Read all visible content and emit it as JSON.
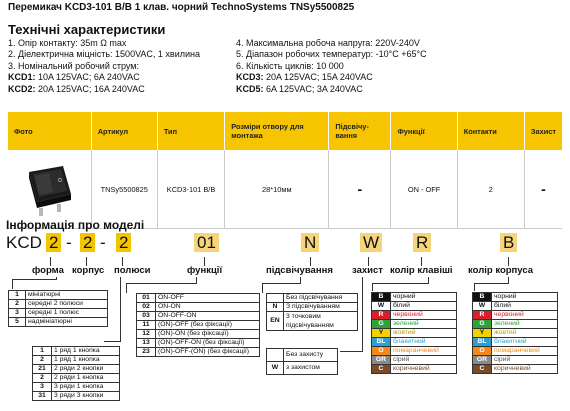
{
  "title": "Перемикач KCD3-101 B/B 1 клав. чорний TechnoSystems TNSy5500825",
  "specs_heading": "Технічні характеристики",
  "specs_left": [
    "1. Опір контакту: 35m Ω  max",
    "2. Діелектрична міцність:  1500VAC, 1 хвилина",
    "3. Номінальний робочий струм:"
  ],
  "specs_left_rows": [
    {
      "k": "KCD1:",
      "v": " 10A 125VAC; 6A 240VAC"
    },
    {
      "k": "KCD2:",
      "v": " 20A 125VAC; 16A 240VAC"
    }
  ],
  "specs_right": [
    "4. Максимальна робоча напруга: 220V-240V",
    "5. Діапазон робочих температур: -10°C +65°C",
    "6. Кількість циклів: 10 000"
  ],
  "specs_right_rows": [
    {
      "k": "KCD3:",
      "v": " 20A 125VAC; 15A 240VAC"
    },
    {
      "k": "KCD5:",
      "v": " 6A 125VAC; 3A 240VAC"
    }
  ],
  "table": {
    "headers": [
      "Фото",
      "Артикул",
      "Тип",
      "Розміри отвору для монтажа",
      "Підсвічу-вання",
      "Функції",
      "Контакти",
      "Захист"
    ],
    "row": [
      "",
      "TNSy5500825",
      "KCD3-101 B/B",
      "28*10мм",
      "-",
      "ON - OFF",
      "2",
      "-"
    ]
  },
  "model_heading": "Інформація про моделі",
  "code": {
    "prefix": "KCD",
    "p1": "2",
    "sep": "-",
    "p2": "2",
    "p3": "2",
    "p4": "01",
    "p5": "N",
    "p6": "W",
    "p7": "R",
    "p8": "B"
  },
  "labels": {
    "forma": "форма",
    "korpus": "корпус",
    "polyusy": "полюси",
    "funktsii": "функції",
    "pidsv": "підсвічування",
    "zakhyst": "захист",
    "kolir_kl": "колір клавіші",
    "kolir_korp": "колір корпуса"
  },
  "forma_rows": [
    {
      "k": "1",
      "v": "мініатюрні"
    },
    {
      "k": "2",
      "v": "середні 2 полюси"
    },
    {
      "k": "3",
      "v": "середні 1 полюс"
    },
    {
      "k": "5",
      "v": "надмініатюрні"
    }
  ],
  "poles_rows": [
    {
      "k": "1",
      "v": "1 ряд 1 кнопка"
    },
    {
      "k": "2",
      "v": "1 ряд 1 кнопка"
    },
    {
      "k": "21",
      "v": "2 ряди 2 кнопки"
    },
    {
      "k": "2",
      "v": "2 ряди 1 кнопка"
    },
    {
      "k": "3",
      "v": "3 ряди 1 кнопка"
    },
    {
      "k": "31",
      "v": "3 ряди 3 кнопки"
    }
  ],
  "func_rows": [
    {
      "k": "01",
      "v": "ON-OFF"
    },
    {
      "k": "02",
      "v": "ON-ON"
    },
    {
      "k": "03",
      "v": "ON-OFF-ON"
    },
    {
      "k": "11",
      "v": "(ON)-OFF (без фіксації)"
    },
    {
      "k": "12",
      "v": "(ON)-ON (без фіксації)"
    },
    {
      "k": "13",
      "v": "(ON)-OFF-ON (без фіксації)"
    },
    {
      "k": "23",
      "v": "(ON)-OFF-(ON) (без фіксації)"
    }
  ],
  "light_rows": [
    {
      "k": "",
      "v": "Без підсвічування"
    },
    {
      "k": "N",
      "v": "З підсвічуванням"
    },
    {
      "k": "EN",
      "v": "3 точковим підсвічуванням"
    }
  ],
  "protect_rows": [
    {
      "k": "",
      "v": "Без захисту"
    },
    {
      "k": "W",
      "v": "з захистом"
    }
  ],
  "colors": [
    {
      "k": "B",
      "v": "чорний",
      "c": "#111111",
      "t": "#111111"
    },
    {
      "k": "W",
      "v": "білий",
      "c": "#ffffff",
      "t": "#111111"
    },
    {
      "k": "R",
      "v": "червоний",
      "c": "#d9202a",
      "t": "#d9202a"
    },
    {
      "k": "G",
      "v": "зелений",
      "c": "#2ea23a",
      "t": "#2ea23a"
    },
    {
      "k": "Y",
      "v": "жовтий",
      "c": "#f4d000",
      "t": "#b89c00"
    },
    {
      "k": "BL",
      "v": "блакитний",
      "c": "#2aa0d8",
      "t": "#2aa0d8"
    },
    {
      "k": "O",
      "v": "помаранчевий",
      "c": "#f08a1c",
      "t": "#f08a1c"
    },
    {
      "k": "GR",
      "v": "сірий",
      "c": "#8a8a8a",
      "t": "#555555"
    },
    {
      "k": "C",
      "v": "коричневий",
      "c": "#7a4a2a",
      "t": "#7a4a2a"
    }
  ],
  "colors2": [
    {
      "k": "B",
      "v": "чорний",
      "c": "#111111",
      "t": "#111111"
    },
    {
      "k": "W",
      "v": "білий",
      "c": "#ffffff",
      "t": "#111111"
    },
    {
      "k": "R",
      "v": "червоний",
      "c": "#d9202a",
      "t": "#d9202a"
    },
    {
      "k": "G",
      "v": "зелений",
      "c": "#2ea23a",
      "t": "#2ea23a"
    },
    {
      "k": "Y",
      "v": "жовтий",
      "c": "#f4d000",
      "t": "#b89c00"
    },
    {
      "k": "BL",
      "v": "блакитний",
      "c": "#2aa0d8",
      "t": "#2aa0d8"
    },
    {
      "k": "O",
      "v": "помаранчевий",
      "c": "#f08a1c",
      "t": "#f08a1c"
    },
    {
      "k": "GR",
      "v": "сірий",
      "c": "#8a8a8a",
      "t": "#555555"
    },
    {
      "k": "C",
      "v": "коричневий",
      "c": "#7a4a2a",
      "t": "#7a4a2a"
    }
  ]
}
